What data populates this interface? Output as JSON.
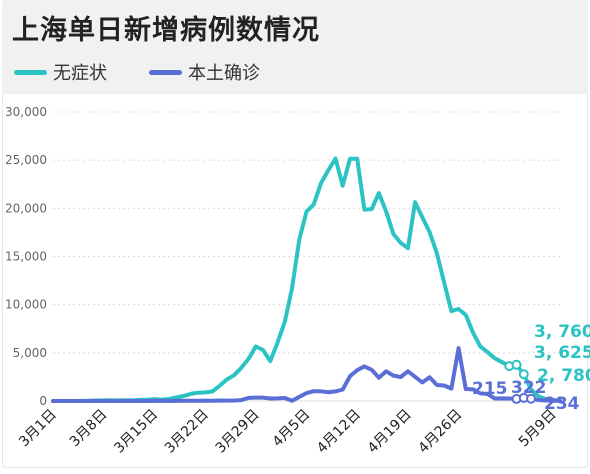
{
  "chart_data": {
    "type": "line",
    "title": "上海单日新增病例数情况",
    "colors": {
      "asymptomatic": "#2bc3c3",
      "confirmed": "#5a6ed6"
    },
    "ylim": [
      0,
      30000
    ],
    "yticks": [
      "0",
      "5,000",
      "10,000",
      "15,000",
      "20,000",
      "25,000",
      "30,000"
    ],
    "ytick_values": [
      0,
      5000,
      10000,
      15000,
      20000,
      25000,
      30000
    ],
    "xlim": [
      1,
      71
    ],
    "xticks": [
      "3月1日",
      "3月8日",
      "3月15日",
      "3月22日",
      "3月29日",
      "4月5日",
      "4月12日",
      "4月19日",
      "4月26日",
      "5月9日"
    ],
    "xtick_values": [
      1,
      8,
      15,
      22,
      29,
      36,
      43,
      50,
      57,
      70
    ],
    "series": [
      {
        "name": "无症状",
        "key": "asymptomatic",
        "x": [
          1,
          2,
          3,
          4,
          5,
          6,
          7,
          8,
          9,
          10,
          11,
          12,
          13,
          14,
          15,
          16,
          17,
          18,
          19,
          20,
          21,
          22,
          23,
          24,
          25,
          26,
          27,
          28,
          29,
          30,
          31,
          32,
          33,
          34,
          35,
          36,
          37,
          38,
          39,
          40,
          41,
          42,
          43,
          44,
          45,
          46,
          47,
          48,
          49,
          50,
          51,
          52,
          53,
          54,
          55,
          56,
          57,
          58,
          59,
          60,
          61,
          62,
          63,
          64,
          65,
          66,
          67,
          68,
          69,
          70,
          71
        ],
        "values": [
          1,
          1,
          2,
          2,
          14,
          16,
          51,
          62,
          76,
          64,
          78,
          64,
          128,
          130,
          197,
          150,
          203,
          366,
          509,
          734,
          865,
          896,
          981,
          1580,
          2231,
          2676,
          3450,
          4381,
          5656,
          5298,
          4144,
          6051,
          8226,
          11691,
          16766,
          19660,
          20398,
          22609,
          23937,
          25173,
          22348,
          25141,
          25146,
          19872,
          19923,
          21582,
          19657,
          17332,
          16407,
          15861,
          20634,
          19055,
          17529,
          15319,
          12309,
          9330,
          9545,
          8932,
          7084,
          5669,
          5062,
          4437,
          4024,
          3625,
          3760,
          2780,
          1200,
          500,
          200,
          100,
          50
        ]
      },
      {
        "name": "本土确诊",
        "key": "confirmed",
        "x": [
          1,
          2,
          3,
          4,
          5,
          6,
          7,
          8,
          9,
          10,
          11,
          12,
          13,
          14,
          15,
          16,
          17,
          18,
          19,
          20,
          21,
          22,
          23,
          24,
          25,
          26,
          27,
          28,
          29,
          30,
          31,
          32,
          33,
          34,
          35,
          36,
          37,
          38,
          39,
          40,
          41,
          42,
          43,
          44,
          45,
          46,
          47,
          48,
          49,
          50,
          51,
          52,
          53,
          54,
          55,
          56,
          57,
          58,
          59,
          60,
          61,
          62,
          63,
          64,
          65,
          66,
          67,
          68,
          69,
          70,
          71
        ],
        "values": [
          1,
          0,
          0,
          0,
          0,
          0,
          0,
          0,
          2,
          3,
          1,
          5,
          1,
          3,
          6,
          8,
          4,
          9,
          17,
          24,
          31,
          38,
          29,
          51,
          45,
          50,
          96,
          326,
          355,
          358,
          260,
          268,
          311,
          17,
          425,
          824,
          1015,
          1006,
          914,
          994,
          1189,
          2573,
          3200,
          3590,
          3238,
          2417,
          3084,
          2634,
          2494,
          3084,
          2517,
          1931,
          2472,
          1661,
          1606,
          1292,
          5487,
          1249,
          1203,
          788,
          727,
          260,
          274,
          261,
          215,
          322,
          234,
          100,
          50,
          20,
          10
        ]
      }
    ],
    "annotations": [
      {
        "text": "3, 760",
        "series": "asymptomatic",
        "value": 3760
      },
      {
        "text": "3, 625",
        "series": "asymptomatic",
        "value": 3625
      },
      {
        "text": "2, 780",
        "series": "asymptomatic",
        "value": 2780
      },
      {
        "text": "215",
        "series": "confirmed",
        "value": 215
      },
      {
        "text": "322",
        "series": "confirmed",
        "value": 322
      },
      {
        "text": "234",
        "series": "confirmed",
        "value": 234
      }
    ],
    "grid": true,
    "legend_position": "top-left"
  }
}
